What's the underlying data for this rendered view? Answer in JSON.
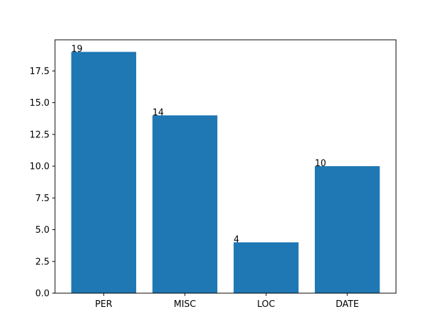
{
  "chart_data": {
    "type": "bar",
    "categories": [
      "PER",
      "MISC",
      "LOC",
      "DATE"
    ],
    "values": [
      19,
      14,
      4,
      10
    ],
    "data_labels": [
      "19",
      "14",
      "4",
      "10"
    ],
    "title": "",
    "xlabel": "",
    "ylabel": "",
    "ylim": [
      0,
      19.95
    ],
    "yticks": [
      0.0,
      2.5,
      5.0,
      7.5,
      10.0,
      12.5,
      15.0,
      17.5
    ],
    "ytick_labels": [
      "0.0",
      "2.5",
      "5.0",
      "7.5",
      "10.0",
      "12.5",
      "15.0",
      "17.5"
    ],
    "grid": false,
    "bar_color": "#1f77b4"
  }
}
